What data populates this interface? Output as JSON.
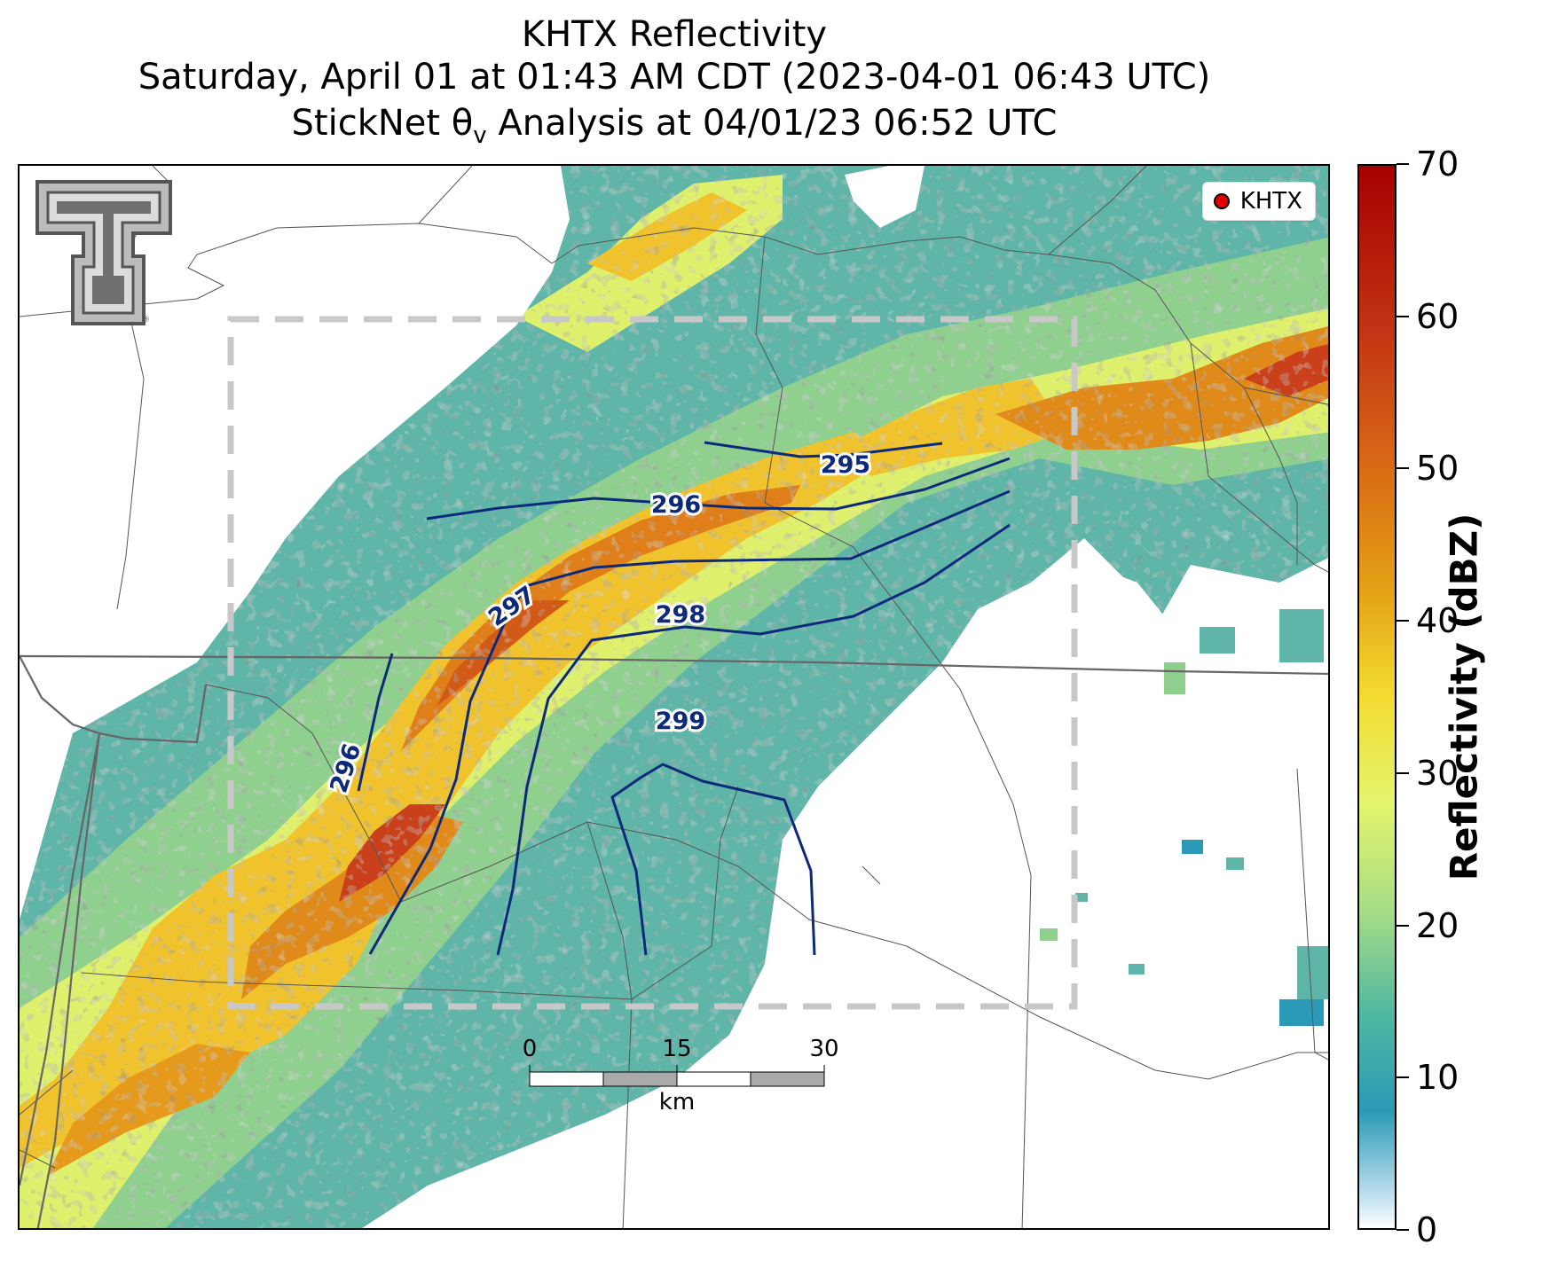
{
  "title": {
    "line1": "KHTX Reflectivity",
    "line2": "Saturday, April 01 at 01:43 AM CDT (2023-04-01 06:43 UTC)",
    "line3": "StickNet θv Analysis at 04/01/23 06:52 UTC"
  },
  "map": {
    "legend_label": "KHTX",
    "legend_marker_color": "#e00000",
    "logo": "texas-tech-double-t-logo",
    "contour_color": "#0d2a7a",
    "contour_labels": [
      "295",
      "296",
      "297",
      "298",
      "299",
      "296"
    ],
    "analysis_box_style": "dashed gray"
  },
  "scale_bar": {
    "ticks": [
      "0",
      "15",
      "30"
    ],
    "unit": "km"
  },
  "colorbar": {
    "label": "Reflectivity (dBZ)",
    "ticks": [
      "0",
      "10",
      "20",
      "30",
      "40",
      "50",
      "60",
      "70"
    ],
    "min": 0,
    "max": 70,
    "low_color": "#ffffff",
    "mid_color": "#f3dc32",
    "high_color": "#a60000"
  }
}
